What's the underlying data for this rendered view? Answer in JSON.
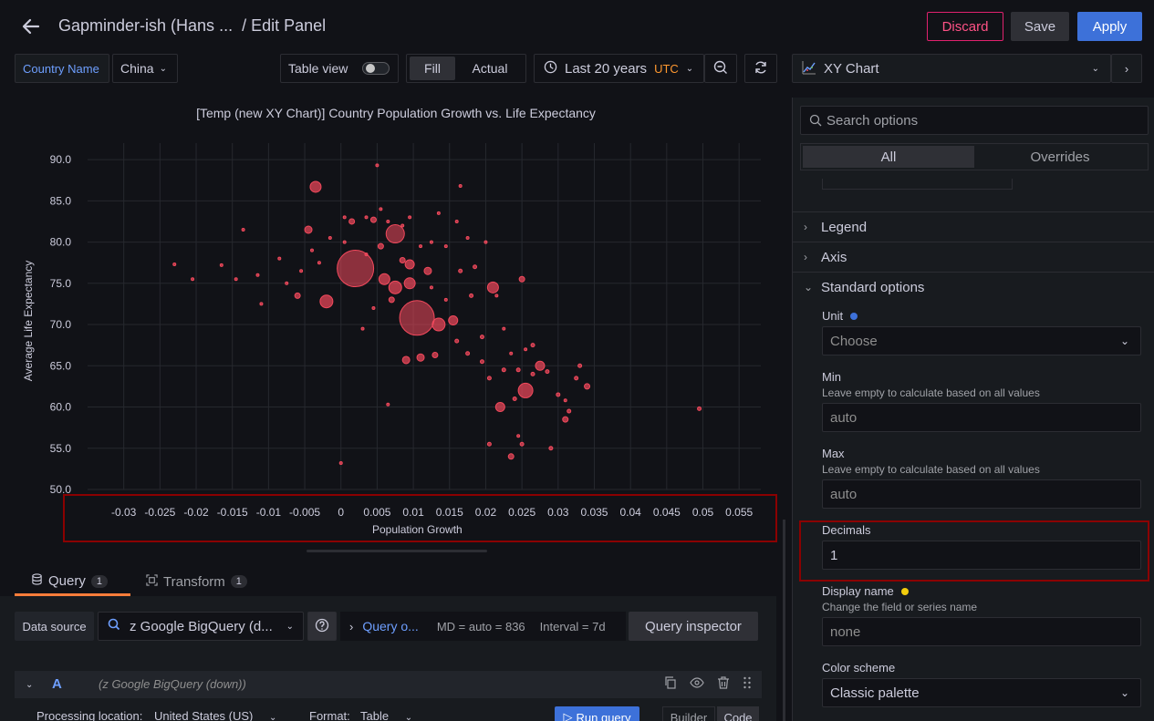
{
  "header": {
    "title_dashboard": "Gapminder-ish (Hans ...",
    "title_sep": "/ Edit Panel",
    "discard": "Discard",
    "save": "Save",
    "apply": "Apply"
  },
  "toolbar": {
    "variable_label": "Country Name",
    "variable_value": "China",
    "table_view": "Table view",
    "fill": "Fill",
    "actual": "Actual",
    "time_range": "Last 20 years",
    "timezone": "UTC",
    "viz_type": "XY Chart"
  },
  "chart_data": {
    "type": "scatter",
    "title": "[Temp (new XY Chart)] Country Population Growth vs. Life Expectancy",
    "xlabel": "Population Growth",
    "ylabel": "Average Life Expectancy",
    "xlim": [
      -0.035,
      0.058
    ],
    "ylim": [
      50.0,
      92.0
    ],
    "x_ticks": [
      "-0.03",
      "-0.025",
      "-0.02",
      "-0.015",
      "-0.01",
      "-0.005",
      "0",
      "0.005",
      "0.01",
      "0.015",
      "0.02",
      "0.025",
      "0.03",
      "0.035",
      "0.04",
      "0.045",
      "0.05",
      "0.055"
    ],
    "y_ticks": [
      "50.0",
      "55.0",
      "60.0",
      "65.0",
      "70.0",
      "75.0",
      "80.0",
      "85.0",
      "90.0"
    ],
    "grid": true,
    "point_color": "#f2495c",
    "points": [
      {
        "x": 0.002,
        "y": 76.8,
        "r": 20
      },
      {
        "x": 0.0105,
        "y": 70.8,
        "r": 19
      },
      {
        "x": 0.0075,
        "y": 81.0,
        "r": 10
      },
      {
        "x": -0.0035,
        "y": 86.7,
        "r": 6
      },
      {
        "x": -0.002,
        "y": 72.8,
        "r": 7
      },
      {
        "x": 0.0075,
        "y": 74.5,
        "r": 7
      },
      {
        "x": 0.0135,
        "y": 70.0,
        "r": 7
      },
      {
        "x": 0.0255,
        "y": 62.0,
        "r": 8
      },
      {
        "x": 0.021,
        "y": 74.5,
        "r": 6
      },
      {
        "x": 0.0095,
        "y": 75.0,
        "r": 6
      },
      {
        "x": 0.006,
        "y": 75.5,
        "r": 6
      },
      {
        "x": 0.0095,
        "y": 77.3,
        "r": 5
      },
      {
        "x": 0.0155,
        "y": 70.5,
        "r": 5
      },
      {
        "x": 0.022,
        "y": 60.0,
        "r": 5
      },
      {
        "x": 0.0275,
        "y": 65.0,
        "r": 5
      },
      {
        "x": 0.011,
        "y": 66.0,
        "r": 4
      },
      {
        "x": 0.009,
        "y": 65.7,
        "r": 4
      },
      {
        "x": 0.012,
        "y": 76.5,
        "r": 4
      },
      {
        "x": -0.0045,
        "y": 81.5,
        "r": 4
      },
      {
        "x": 0.031,
        "y": 58.5,
        "r": 3
      },
      {
        "x": 0.025,
        "y": 75.5,
        "r": 3
      },
      {
        "x": 0.0235,
        "y": 54.0,
        "r": 3
      },
      {
        "x": 0.034,
        "y": 62.5,
        "r": 3
      },
      {
        "x": 0.0055,
        "y": 79.5,
        "r": 3
      },
      {
        "x": 0.007,
        "y": 73.0,
        "r": 3
      },
      {
        "x": 0.013,
        "y": 66.3,
        "r": 3
      },
      {
        "x": 0.0015,
        "y": 82.5,
        "r": 3
      },
      {
        "x": -0.006,
        "y": 73.5,
        "r": 3
      },
      {
        "x": 0.0045,
        "y": 82.7,
        "r": 3
      },
      {
        "x": 0.0085,
        "y": 77.8,
        "r": 3
      },
      {
        "x": 0.0185,
        "y": 77.0,
        "r": 2
      },
      {
        "x": 0.0165,
        "y": 76.5,
        "r": 2
      },
      {
        "x": 0.018,
        "y": 73.5,
        "r": 2
      },
      {
        "x": 0.016,
        "y": 68.0,
        "r": 2
      },
      {
        "x": 0.0195,
        "y": 68.5,
        "r": 2
      },
      {
        "x": 0.0245,
        "y": 64.5,
        "r": 2
      },
      {
        "x": 0.0265,
        "y": 64.0,
        "r": 2
      },
      {
        "x": 0.0285,
        "y": 64.3,
        "r": 2
      },
      {
        "x": 0.03,
        "y": 61.5,
        "r": 2
      },
      {
        "x": 0.0325,
        "y": 63.5,
        "r": 2
      },
      {
        "x": 0.033,
        "y": 65.0,
        "r": 2
      },
      {
        "x": 0.0315,
        "y": 59.5,
        "r": 2
      },
      {
        "x": 0.029,
        "y": 55.0,
        "r": 2
      },
      {
        "x": 0.025,
        "y": 55.5,
        "r": 2
      },
      {
        "x": 0.0205,
        "y": 55.5,
        "r": 2
      },
      {
        "x": 0.0265,
        "y": 67.5,
        "r": 2
      },
      {
        "x": 0.0225,
        "y": 64.5,
        "r": 2
      },
      {
        "x": 0.024,
        "y": 61.0,
        "r": 2
      },
      {
        "x": 0.0205,
        "y": 63.5,
        "r": 2
      },
      {
        "x": 0.0195,
        "y": 65.5,
        "r": 2
      },
      {
        "x": 0.0175,
        "y": 66.5,
        "r": 2
      },
      {
        "x": 0.0495,
        "y": 59.8,
        "r": 2
      },
      {
        "x": -0.0115,
        "y": 76.0,
        "r": 1.5
      },
      {
        "x": -0.0135,
        "y": 81.5,
        "r": 1.5
      },
      {
        "x": -0.0165,
        "y": 77.2,
        "r": 1.5
      },
      {
        "x": -0.011,
        "y": 72.5,
        "r": 1.5
      },
      {
        "x": -0.0145,
        "y": 75.5,
        "r": 1.5
      },
      {
        "x": -0.0075,
        "y": 75.0,
        "r": 1.5
      },
      {
        "x": -0.0085,
        "y": 78.0,
        "r": 1.5
      },
      {
        "x": -0.0055,
        "y": 76.5,
        "r": 1.5
      },
      {
        "x": -0.004,
        "y": 79.0,
        "r": 1.5
      },
      {
        "x": -0.003,
        "y": 77.5,
        "r": 1.5
      },
      {
        "x": -0.0015,
        "y": 80.5,
        "r": 1.5
      },
      {
        "x": 0.0005,
        "y": 80.0,
        "r": 1.5
      },
      {
        "x": 0.0005,
        "y": 83.0,
        "r": 1.5
      },
      {
        "x": 0.0035,
        "y": 83.0,
        "r": 1.5
      },
      {
        "x": 0.0035,
        "y": 78.5,
        "r": 1.5
      },
      {
        "x": 0.005,
        "y": 89.3,
        "r": 1.5
      },
      {
        "x": 0.0055,
        "y": 84.0,
        "r": 1.5
      },
      {
        "x": 0.0065,
        "y": 82.5,
        "r": 1.5
      },
      {
        "x": 0.0085,
        "y": 82.0,
        "r": 1.5
      },
      {
        "x": 0.0095,
        "y": 83.0,
        "r": 1.5
      },
      {
        "x": 0.011,
        "y": 79.5,
        "r": 1.5
      },
      {
        "x": 0.0125,
        "y": 80.0,
        "r": 1.5
      },
      {
        "x": 0.0135,
        "y": 83.5,
        "r": 1.5
      },
      {
        "x": 0.0145,
        "y": 79.5,
        "r": 1.5
      },
      {
        "x": 0.016,
        "y": 82.5,
        "r": 1.5
      },
      {
        "x": 0.0165,
        "y": 86.8,
        "r": 1.5
      },
      {
        "x": 0.0175,
        "y": 80.5,
        "r": 1.5
      },
      {
        "x": 0.02,
        "y": 80.0,
        "r": 1.5
      },
      {
        "x": 0.0215,
        "y": 73.5,
        "r": 1.5
      },
      {
        "x": 0.0145,
        "y": 73.0,
        "r": 1.5
      },
      {
        "x": 0.0125,
        "y": 74.5,
        "r": 1.5
      },
      {
        "x": 0.0045,
        "y": 72.0,
        "r": 1.5
      },
      {
        "x": 0.003,
        "y": 69.5,
        "r": 1.5
      },
      {
        "x": 0.0065,
        "y": 60.3,
        "r": 1.5
      },
      {
        "x": 0.0,
        "y": 53.2,
        "r": 1.5
      },
      {
        "x": -0.023,
        "y": 77.3,
        "r": 1.5
      },
      {
        "x": -0.0205,
        "y": 75.5,
        "r": 1.5
      },
      {
        "x": 0.0225,
        "y": 69.5,
        "r": 1.5
      },
      {
        "x": 0.0235,
        "y": 66.5,
        "r": 1.5
      },
      {
        "x": 0.0255,
        "y": 67.0,
        "r": 1.5
      },
      {
        "x": 0.031,
        "y": 60.8,
        "r": 1.5
      },
      {
        "x": 0.0245,
        "y": 56.5,
        "r": 1.5
      }
    ]
  },
  "query_tabs": {
    "query": "Query",
    "query_count": "1",
    "transform": "Transform",
    "transform_count": "1"
  },
  "query_editor": {
    "data_source_label": "Data source",
    "data_source": "z Google BigQuery (d...",
    "query_options": "Query o...",
    "md": "MD = auto = 836",
    "interval": "Interval = 7d",
    "inspector": "Query inspector",
    "row_letter": "A",
    "row_datasource": "(z Google BigQuery (down))",
    "processing_label": "Processing location:",
    "processing_value": "United States (US)",
    "format_label": "Format:",
    "format_value": "Table",
    "run_query": "Run query",
    "builder": "Builder",
    "code": "Code"
  },
  "options": {
    "search_placeholder": "Search options",
    "tab_all": "All",
    "tab_overrides": "Overrides",
    "legend": "Legend",
    "axis": "Axis",
    "standard_options": "Standard options",
    "unit_label": "Unit",
    "unit_value": "Choose",
    "min_label": "Min",
    "min_desc": "Leave empty to calculate based on all values",
    "min_placeholder": "auto",
    "max_label": "Max",
    "max_desc": "Leave empty to calculate based on all values",
    "max_placeholder": "auto",
    "decimals_label": "Decimals",
    "decimals_value": "1",
    "display_name_label": "Display name",
    "display_name_desc": "Change the field or series name",
    "display_name_placeholder": "none",
    "color_scheme_label": "Color scheme",
    "color_scheme_value": "Classic palette",
    "unit_dot_color": "#3d71d9",
    "display_dot_color": "#f2cc0c"
  }
}
